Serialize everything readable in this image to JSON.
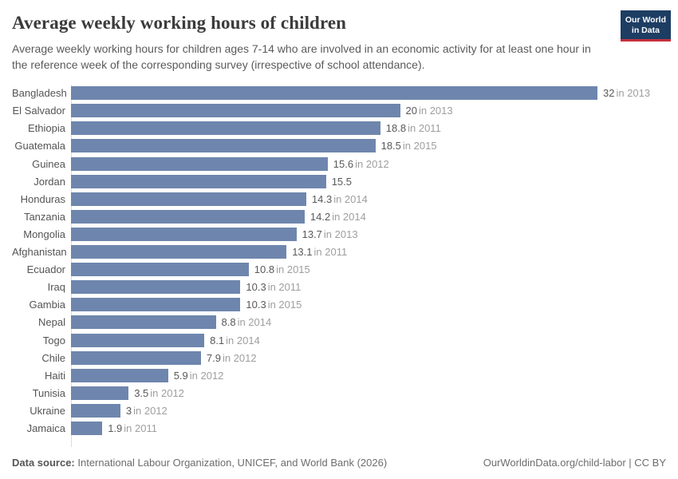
{
  "header": {
    "title": "Average weekly working hours of children",
    "subtitle": "Average weekly working hours for children ages 7-14 who are involved in an economic activity for at least one hour in the reference week of the corresponding survey (irrespective of school attendance).",
    "logo": {
      "line1": "Our World",
      "line2": "in Data"
    }
  },
  "chart_data": {
    "type": "bar",
    "orientation": "horizontal",
    "title": "Average weekly working hours of children",
    "xlabel": "",
    "ylabel": "",
    "unit": "hours per week",
    "xlim": [
      0,
      32
    ],
    "grid": false,
    "legend": false,
    "categories": [
      "Bangladesh",
      "El Salvador",
      "Ethiopia",
      "Guatemala",
      "Guinea",
      "Jordan",
      "Honduras",
      "Tanzania",
      "Mongolia",
      "Afghanistan",
      "Ecuador",
      "Iraq",
      "Gambia",
      "Nepal",
      "Togo",
      "Chile",
      "Haiti",
      "Tunisia",
      "Ukraine",
      "Jamaica"
    ],
    "values": [
      32,
      20,
      18.8,
      18.5,
      15.6,
      15.5,
      14.3,
      14.2,
      13.7,
      13.1,
      10.8,
      10.3,
      10.3,
      8.8,
      8.1,
      7.9,
      5.9,
      3.5,
      3,
      1.9
    ],
    "rows": [
      {
        "country": "Bangladesh",
        "value": 32,
        "value_label": "32",
        "year_label": "in 2013"
      },
      {
        "country": "El Salvador",
        "value": 20,
        "value_label": "20",
        "year_label": "in 2013"
      },
      {
        "country": "Ethiopia",
        "value": 18.8,
        "value_label": "18.8",
        "year_label": "in 2011"
      },
      {
        "country": "Guatemala",
        "value": 18.5,
        "value_label": "18.5",
        "year_label": "in 2015"
      },
      {
        "country": "Guinea",
        "value": 15.6,
        "value_label": "15.6",
        "year_label": "in 2012"
      },
      {
        "country": "Jordan",
        "value": 15.5,
        "value_label": "15.5",
        "year_label": ""
      },
      {
        "country": "Honduras",
        "value": 14.3,
        "value_label": "14.3",
        "year_label": "in 2014"
      },
      {
        "country": "Tanzania",
        "value": 14.2,
        "value_label": "14.2",
        "year_label": "in 2014"
      },
      {
        "country": "Mongolia",
        "value": 13.7,
        "value_label": "13.7",
        "year_label": "in 2013"
      },
      {
        "country": "Afghanistan",
        "value": 13.1,
        "value_label": "13.1",
        "year_label": "in 2011"
      },
      {
        "country": "Ecuador",
        "value": 10.8,
        "value_label": "10.8",
        "year_label": "in 2015"
      },
      {
        "country": "Iraq",
        "value": 10.3,
        "value_label": "10.3",
        "year_label": "in 2011"
      },
      {
        "country": "Gambia",
        "value": 10.3,
        "value_label": "10.3",
        "year_label": "in 2015"
      },
      {
        "country": "Nepal",
        "value": 8.8,
        "value_label": "8.8",
        "year_label": "in 2014"
      },
      {
        "country": "Togo",
        "value": 8.1,
        "value_label": "8.1",
        "year_label": "in 2014"
      },
      {
        "country": "Chile",
        "value": 7.9,
        "value_label": "7.9",
        "year_label": "in 2012"
      },
      {
        "country": "Haiti",
        "value": 5.9,
        "value_label": "5.9",
        "year_label": "in 2012"
      },
      {
        "country": "Tunisia",
        "value": 3.5,
        "value_label": "3.5",
        "year_label": "in 2012"
      },
      {
        "country": "Ukraine",
        "value": 3,
        "value_label": "3",
        "year_label": "in 2012"
      },
      {
        "country": "Jamaica",
        "value": 1.9,
        "value_label": "1.9",
        "year_label": "in 2011"
      }
    ]
  },
  "footer": {
    "source_label": "Data source:",
    "source_text": "International Labour Organization, UNICEF, and World Bank (2026)",
    "right_text": "OurWorldinData.org/child-labor | CC BY"
  },
  "colors": {
    "bar": "#6e86ad",
    "axis_line": "#dcdcdc",
    "logo_bg": "#1d3d63",
    "logo_stripe": "#c5303c",
    "value_text": "#595959",
    "year_text": "#9e9e9e"
  }
}
